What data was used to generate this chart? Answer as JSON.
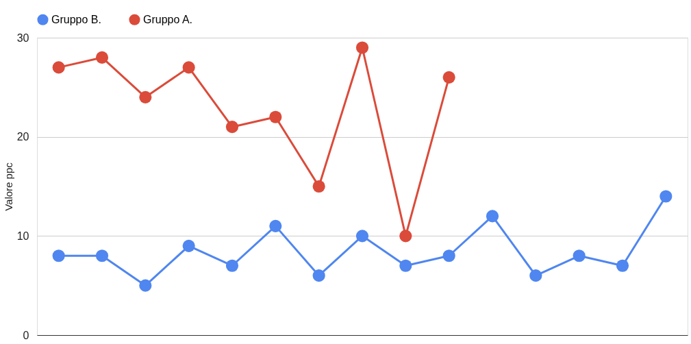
{
  "chart_data": {
    "type": "line",
    "ylabel": "Valore ppc",
    "categories": [
      null,
      null,
      null,
      null,
      null,
      null,
      null,
      null,
      null,
      null,
      null,
      null,
      null,
      null,
      null
    ],
    "series": [
      {
        "name": "Gruppo B.",
        "color": "#4f86f0",
        "values": [
          8,
          8,
          5,
          9,
          7,
          11,
          6,
          10,
          7,
          8,
          12,
          6,
          8,
          7,
          14
        ]
      },
      {
        "name": "Gruppo A.",
        "color": "#db4b3a",
        "values": [
          27,
          28,
          24,
          27,
          21,
          22,
          15,
          29,
          10,
          26,
          null,
          null,
          null,
          null,
          null
        ]
      }
    ],
    "ylim": [
      0,
      30
    ],
    "yticks": [
      0,
      10,
      20,
      30
    ],
    "grid": "y",
    "legend": "top",
    "marker": "circle",
    "line_style": "solid",
    "tick_labels": "y"
  }
}
